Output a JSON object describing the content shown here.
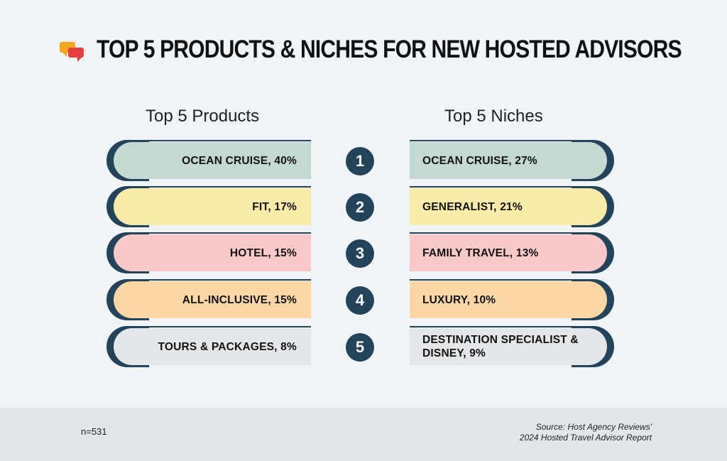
{
  "title": "TOP 5 PRODUCTS & NICHES FOR NEW HOSTED ADVISORS",
  "icons": {
    "title_icon": "chat-bubbles-icon"
  },
  "columns": {
    "left_header": "Top 5 Products",
    "right_header": "Top 5 Niches"
  },
  "rows": [
    {
      "rank": "1",
      "product": "OCEAN CRUISE, 40%",
      "niche": "OCEAN CRUISE, 27%",
      "color": "#c5d9d3"
    },
    {
      "rank": "2",
      "product": "FIT, 17%",
      "niche": "GENERALIST, 21%",
      "color": "#f8eaa9"
    },
    {
      "rank": "3",
      "product": "HOTEL, 15%",
      "niche": "FAMILY TRAVEL, 13%",
      "color": "#f9c8c8"
    },
    {
      "rank": "4",
      "product": "ALL-INCLUSIVE, 15%",
      "niche": "LUXURY, 10%",
      "color": "#fcd7a6"
    },
    {
      "rank": "5",
      "product": "TOURS & PACKAGES, 8%",
      "niche": "DESTINATION SPECIALIST & DISNEY, 9%",
      "color": "#e5e6e8"
    }
  ],
  "colors": {
    "accent": "#22435a",
    "icon_orange": "#f5a623",
    "icon_red": "#e84040"
  },
  "footer": {
    "sample": "n=531",
    "source_line1": "Source: Host Agency Reviews'",
    "source_line2": "2024 Hosted Travel Advisor Report"
  }
}
